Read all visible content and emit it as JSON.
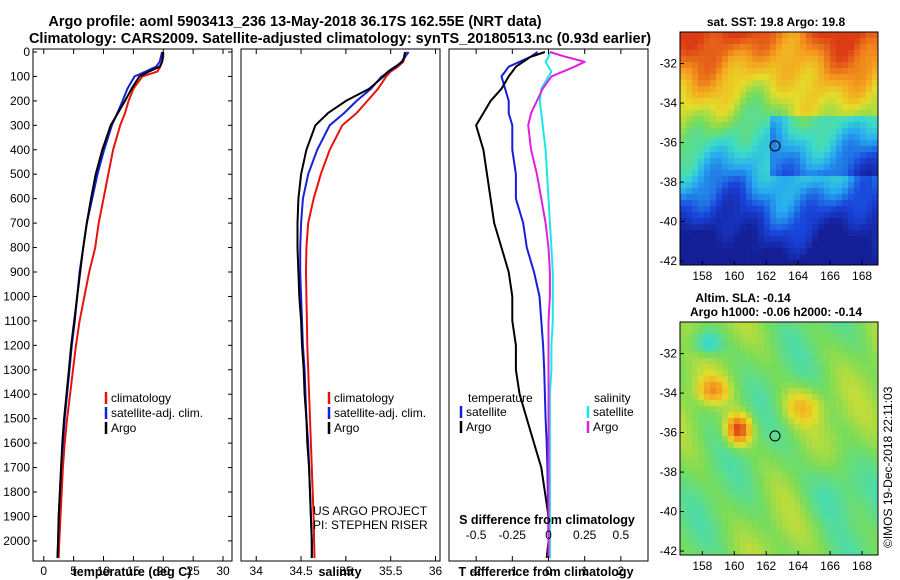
{
  "titles": {
    "line1": "Argo profile: aoml 5903413_236 13-May-2018 36.17S 162.55E (NRT data)",
    "line2": "Climatology: CARS2009. Satellite-adjusted climatology: synTS_20180513.nc (0.93d earlier)"
  },
  "colors": {
    "climatology": "#e8120c",
    "satellite": "#1420d8",
    "argo": "#000000",
    "cyan": "#19e8e6",
    "magenta": "#e020e0"
  },
  "depth_axis": {
    "ticks": [
      0,
      100,
      200,
      300,
      400,
      500,
      600,
      700,
      800,
      900,
      1000,
      1100,
      1200,
      1300,
      1400,
      1500,
      1600,
      1700,
      1800,
      1900,
      2000
    ],
    "range": [
      0,
      2070
    ]
  },
  "chart_data": [
    {
      "type": "line",
      "name": "temperature",
      "xlabel": "temperature (deg C)",
      "xticks": [
        0,
        5,
        10,
        15,
        20,
        25,
        30
      ],
      "xlim": [
        -1.8,
        31.5
      ],
      "legend": [
        "climatology",
        "satellite-adj. clim.",
        "Argo"
      ],
      "series": [
        {
          "name": "climatology",
          "color": "#e8120c",
          "x": [
            20,
            20,
            19.8,
            19.5,
            19,
            16.5,
            15,
            14.2,
            13.6,
            12.8,
            11.6,
            10.8,
            10.0,
            9.2,
            8.6,
            7.6,
            6.8,
            6.0,
            5.4,
            4.9,
            4.4,
            3.9,
            3.5,
            3.2,
            3.0,
            2.8,
            2.6,
            2.5
          ],
          "y": [
            0,
            20,
            40,
            60,
            80,
            100,
            150,
            200,
            250,
            300,
            400,
            500,
            600,
            700,
            800,
            900,
            1000,
            1100,
            1200,
            1300,
            1400,
            1500,
            1600,
            1700,
            1800,
            1900,
            2000,
            2070
          ]
        },
        {
          "name": "satellite-adj. clim.",
          "color": "#1420d8",
          "x": [
            19.8,
            19.6,
            19.4,
            18.8,
            17,
            15.2,
            14.0,
            13.2,
            12.3,
            11.4,
            10.1,
            9.0,
            8.1,
            7.2,
            6.6,
            6.0,
            5.6,
            5.2,
            4.7,
            4.3,
            3.9,
            3.5,
            3.2,
            2.9,
            2.7,
            2.5,
            2.4,
            2.3
          ],
          "y": [
            0,
            20,
            40,
            60,
            80,
            100,
            150,
            200,
            250,
            300,
            400,
            500,
            600,
            700,
            800,
            900,
            1000,
            1100,
            1200,
            1300,
            1400,
            1500,
            1600,
            1700,
            1800,
            1900,
            2000,
            2070
          ]
        },
        {
          "name": "Argo",
          "color": "#000000",
          "x": [
            19.9,
            19.9,
            19.8,
            19.4,
            17.6,
            16.0,
            14.7,
            13.6,
            12.4,
            11.2,
            9.8,
            8.7,
            7.9,
            7.2,
            6.6,
            6.1,
            5.6,
            5.1,
            4.6,
            4.2,
            3.8,
            3.4,
            3.1,
            2.9,
            2.7,
            2.5,
            2.4,
            2.3
          ],
          "y": [
            0,
            20,
            40,
            60,
            80,
            100,
            150,
            200,
            250,
            300,
            400,
            500,
            600,
            700,
            800,
            900,
            1000,
            1100,
            1200,
            1300,
            1400,
            1500,
            1600,
            1700,
            1800,
            1900,
            2000,
            2070
          ]
        }
      ]
    },
    {
      "type": "line",
      "name": "salinity",
      "xlabel": "salinity",
      "xticks": [
        34,
        34.5,
        35,
        35.5,
        36
      ],
      "xlim": [
        33.83,
        36.05
      ],
      "legend": [
        "climatology",
        "satellite-adj. clim.",
        "Argo"
      ],
      "series": [
        {
          "name": "climatology",
          "color": "#e8120c",
          "x": [
            35.68,
            35.66,
            35.64,
            35.58,
            35.5,
            35.45,
            35.36,
            35.24,
            35.12,
            34.96,
            34.82,
            34.72,
            34.64,
            34.58,
            34.56,
            34.555,
            34.56,
            34.565,
            34.57,
            34.58,
            34.59,
            34.6,
            34.61,
            34.62,
            34.63,
            34.64,
            34.645,
            34.65
          ],
          "y": [
            0,
            20,
            40,
            60,
            80,
            100,
            150,
            200,
            250,
            300,
            400,
            500,
            600,
            700,
            800,
            900,
            1000,
            1100,
            1200,
            1300,
            1400,
            1500,
            1600,
            1700,
            1800,
            1900,
            2000,
            2070
          ]
        },
        {
          "name": "satellite-adj. clim.",
          "color": "#1420d8",
          "x": [
            35.7,
            35.66,
            35.62,
            35.56,
            35.48,
            35.4,
            35.28,
            35.12,
            34.98,
            34.82,
            34.68,
            34.58,
            34.52,
            34.5,
            34.49,
            34.49,
            34.5,
            34.51,
            34.52,
            34.54,
            34.55,
            34.56,
            34.58,
            34.59,
            34.6,
            34.61,
            34.62,
            34.62
          ],
          "y": [
            0,
            20,
            40,
            60,
            80,
            100,
            150,
            200,
            250,
            300,
            400,
            500,
            600,
            700,
            800,
            900,
            1000,
            1100,
            1200,
            1300,
            1400,
            1500,
            1600,
            1700,
            1800,
            1900,
            2000,
            2070
          ]
        },
        {
          "name": "Argo",
          "color": "#000000",
          "x": [
            35.66,
            35.65,
            35.63,
            35.55,
            35.47,
            35.42,
            35.26,
            35.0,
            34.8,
            34.66,
            34.56,
            34.5,
            34.47,
            34.46,
            34.46,
            34.47,
            34.48,
            34.5,
            34.51,
            34.53,
            34.54,
            34.56,
            34.57,
            34.59,
            34.6,
            34.61,
            34.62,
            34.62
          ],
          "y": [
            0,
            20,
            40,
            60,
            80,
            100,
            150,
            200,
            250,
            300,
            400,
            500,
            600,
            700,
            800,
            900,
            1000,
            1100,
            1200,
            1300,
            1400,
            1500,
            1600,
            1700,
            1800,
            1900,
            2000,
            2070
          ]
        }
      ],
      "annotation": [
        "US ARGO PROJECT",
        "PI: STEPHEN RISER"
      ]
    },
    {
      "type": "line",
      "name": "difference",
      "xlabel": "T difference from climatology",
      "xticks": [
        -2,
        -1,
        0,
        1,
        2
      ],
      "xlim": [
        -2.75,
        2.75
      ],
      "secondary_label": "S difference from climatology",
      "secondary_ticks": [
        -0.5,
        -0.25,
        0,
        0.25,
        0.5
      ],
      "legend_left_title": "temperature",
      "legend_right_title": "salinity",
      "legend_left": [
        "satellite",
        "Argo"
      ],
      "legend_right": [
        "satellite",
        "Argo"
      ],
      "series": [
        {
          "name": "T satellite",
          "color": "#1420d8",
          "x": [
            -0.3,
            -0.5,
            -0.8,
            -1.1,
            -1.2,
            -1.3,
            -1.2,
            -1.1,
            -1.1,
            -1.0,
            -1.0,
            -0.9,
            -0.9,
            -0.7,
            -0.6,
            -0.4,
            -0.25,
            -0.2,
            -0.15,
            -0.12,
            -0.1,
            -0.08,
            -0.05,
            -0.03,
            -0.02,
            -0.01,
            0.0,
            0.0
          ],
          "y": [
            0,
            20,
            40,
            60,
            80,
            100,
            150,
            200,
            250,
            300,
            400,
            500,
            600,
            700,
            800,
            900,
            1000,
            1100,
            1200,
            1300,
            1400,
            1500,
            1600,
            1700,
            1800,
            1900,
            2000,
            2070
          ]
        },
        {
          "name": "T Argo",
          "color": "#000000",
          "x": [
            -0.1,
            -0.5,
            -0.7,
            -0.9,
            -1.0,
            -1.1,
            -1.3,
            -1.6,
            -1.8,
            -2.0,
            -1.8,
            -1.7,
            -1.6,
            -1.5,
            -1.3,
            -1.1,
            -1.0,
            -1.0,
            -0.9,
            -0.9,
            -0.8,
            -0.6,
            -0.4,
            -0.2,
            -0.1,
            0.0,
            0.0,
            -0.05
          ],
          "y": [
            0,
            20,
            40,
            60,
            80,
            100,
            150,
            200,
            250,
            300,
            400,
            500,
            600,
            700,
            800,
            900,
            1000,
            1100,
            1200,
            1300,
            1400,
            1500,
            1600,
            1700,
            1800,
            1900,
            2000,
            2070
          ]
        },
        {
          "name": "S satellite",
          "color": "#19e8e6",
          "x": [
            0.01,
            0.0,
            -0.02,
            0.0,
            0.02,
            0.0,
            -0.05,
            -0.06,
            -0.05,
            -0.04,
            -0.02,
            -0.01,
            0.0,
            0.01,
            0.02,
            0.03,
            0.03,
            0.03,
            0.02,
            0.02,
            0.01,
            0.01,
            0.01,
            0.01,
            0.01,
            0.01,
            0.01,
            0.01
          ],
          "y": [
            0,
            20,
            40,
            60,
            80,
            100,
            150,
            200,
            250,
            300,
            400,
            500,
            600,
            700,
            800,
            900,
            1000,
            1100,
            1200,
            1300,
            1400,
            1500,
            1600,
            1700,
            1800,
            1900,
            2000,
            2070
          ]
        },
        {
          "name": "S Argo",
          "color": "#e020e0",
          "x": [
            0.01,
            0.12,
            0.25,
            0.18,
            0.1,
            0.02,
            -0.04,
            -0.08,
            -0.12,
            -0.14,
            -0.12,
            -0.08,
            -0.05,
            -0.02,
            0.0,
            0.01,
            0.01,
            0.0,
            0.0,
            0.0,
            0.0,
            0.0,
            0.0,
            0.0,
            0.0,
            0.0,
            0.0,
            0.0
          ],
          "y": [
            0,
            20,
            40,
            60,
            80,
            100,
            150,
            200,
            250,
            300,
            400,
            500,
            600,
            700,
            800,
            900,
            1000,
            1100,
            1200,
            1300,
            1400,
            1500,
            1600,
            1700,
            1800,
            1900,
            2000,
            2070
          ]
        }
      ]
    }
  ],
  "maps": [
    {
      "title": "sat. SST: 19.8 Argo: 19.8",
      "type": "sst",
      "lat_ticks": [
        -32,
        -34,
        -36,
        -38,
        -40,
        -42
      ],
      "lon_ticks": [
        158,
        160,
        162,
        164,
        166,
        168
      ],
      "lon_range": [
        156.6,
        169.0
      ],
      "lat_range": [
        -42.2,
        -30.4
      ],
      "marker": {
        "lon": 162.55,
        "lat": -36.17
      }
    },
    {
      "title_line1": "Altim. SLA: -0.14",
      "title_line2": "Argo h1000: -0.06 h2000: -0.14",
      "type": "sla",
      "lat_ticks": [
        -32,
        -34,
        -36,
        -38,
        -40,
        -42
      ],
      "lon_ticks": [
        158,
        160,
        162,
        164,
        166,
        168
      ],
      "lon_range": [
        156.6,
        169.0
      ],
      "lat_range": [
        -42.2,
        -30.4
      ],
      "marker": {
        "lon": 162.55,
        "lat": -36.17
      }
    }
  ],
  "footer": "©IMOS 19-Dec-2018 22:11:03"
}
